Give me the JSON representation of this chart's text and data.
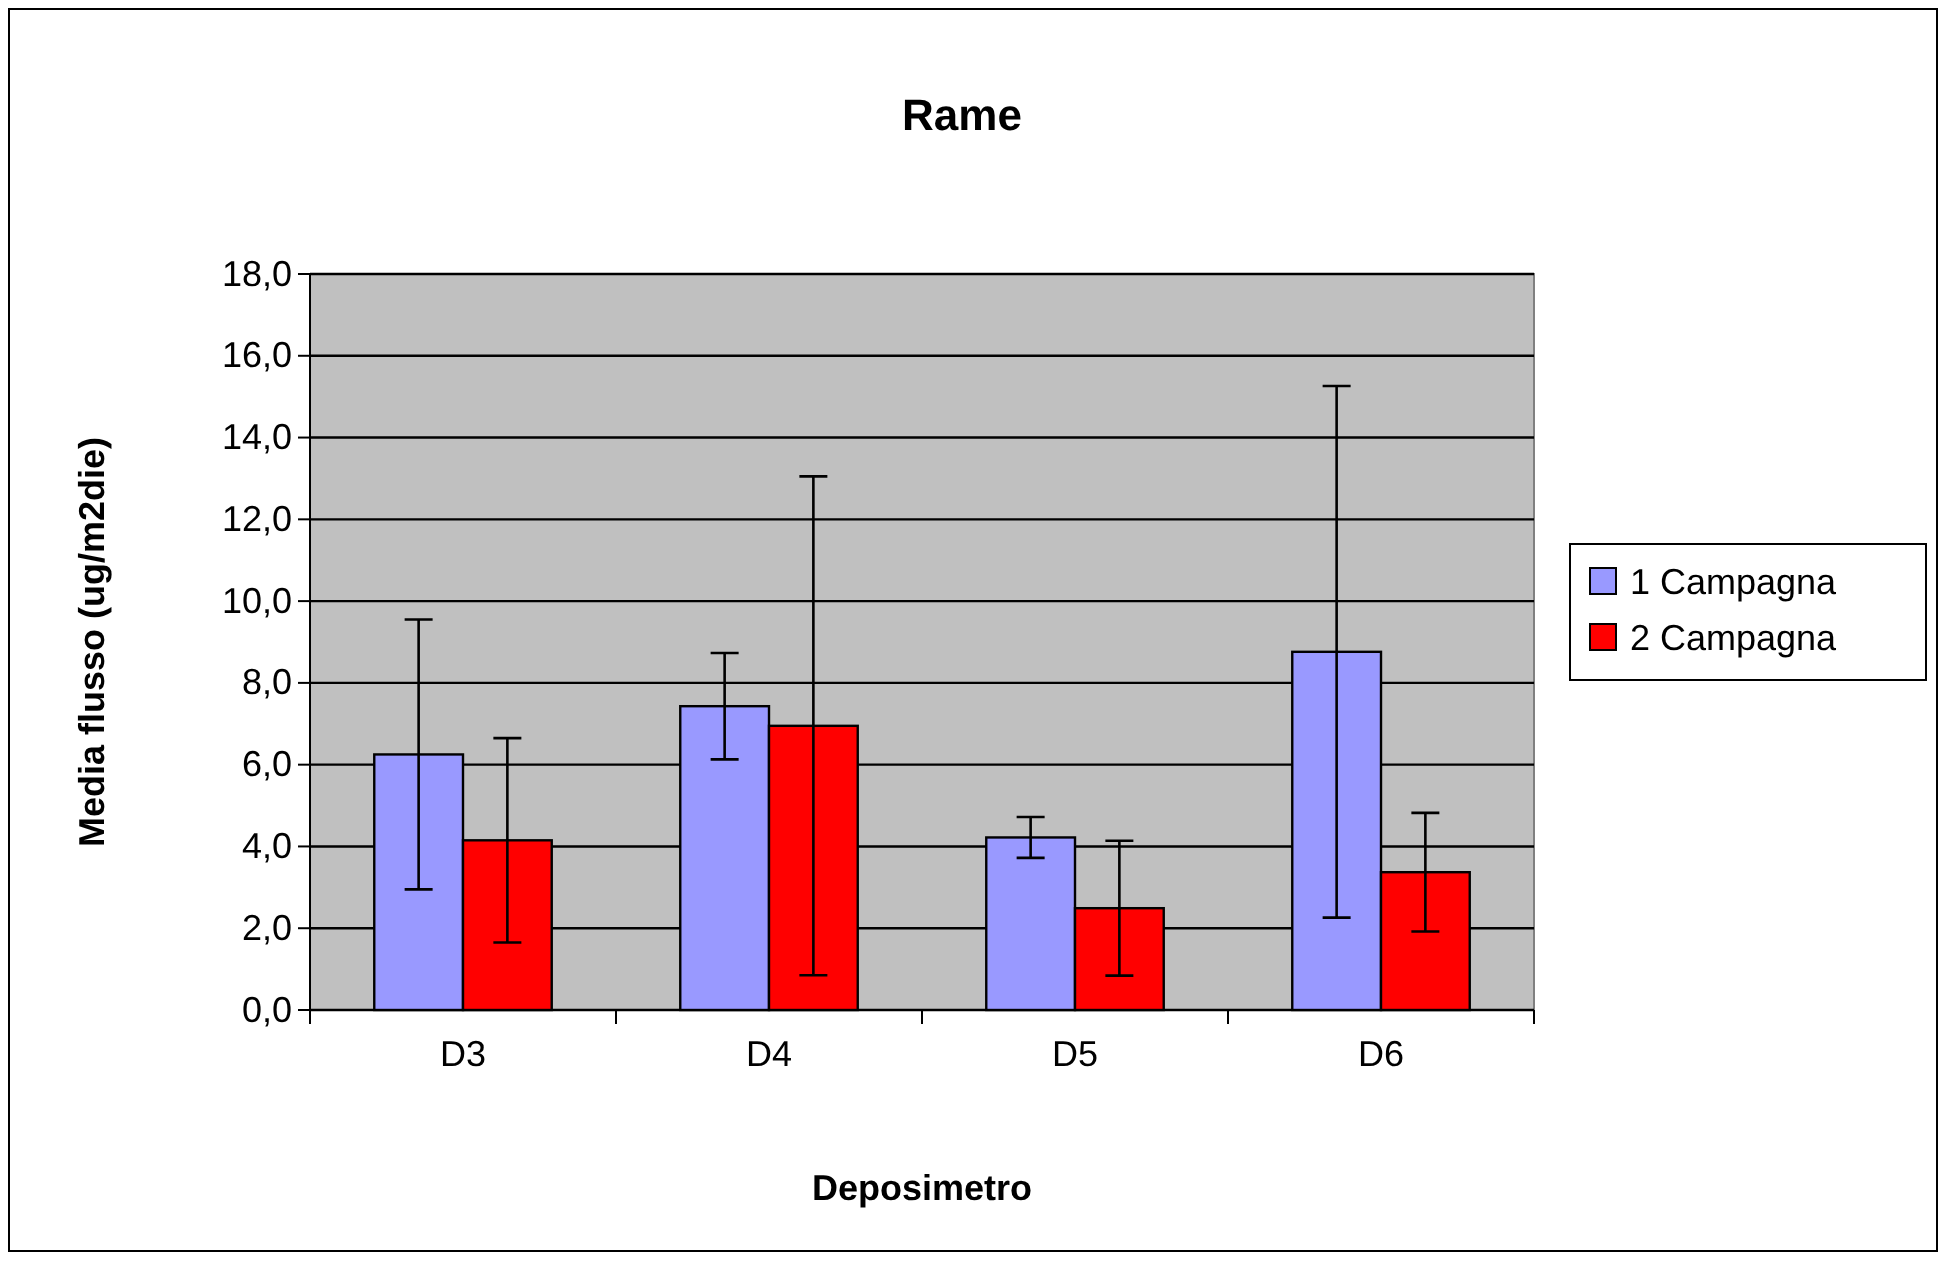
{
  "chart_data": {
    "type": "bar",
    "title": "Rame",
    "xlabel": "Deposimetro",
    "ylabel": "Media flusso (ug/m2die)",
    "categories": [
      "D3",
      "D4",
      "D5",
      "D6"
    ],
    "series": [
      {
        "name": "1 Campagna",
        "color": "#9999ff",
        "values": [
          6.25,
          7.43,
          4.22,
          8.76
        ],
        "errors": [
          3.3,
          1.3,
          0.5,
          6.5
        ]
      },
      {
        "name": "2 Campagna",
        "color": "#ff0000",
        "values": [
          4.15,
          6.95,
          2.49,
          3.37
        ],
        "errors": [
          2.5,
          6.1,
          1.65,
          1.45
        ]
      }
    ],
    "ylim": [
      0,
      18
    ],
    "yticks": [
      {
        "value": 0,
        "label": "0,0"
      },
      {
        "value": 2,
        "label": "2,0"
      },
      {
        "value": 4,
        "label": "4,0"
      },
      {
        "value": 6,
        "label": "6,0"
      },
      {
        "value": 8,
        "label": "8,0"
      },
      {
        "value": 10,
        "label": "10,0"
      },
      {
        "value": 12,
        "label": "12,0"
      },
      {
        "value": 14,
        "label": "14,0"
      },
      {
        "value": 16,
        "label": "16,0"
      },
      {
        "value": 18,
        "label": "18,0"
      }
    ],
    "grid": "y",
    "legend": "right"
  }
}
